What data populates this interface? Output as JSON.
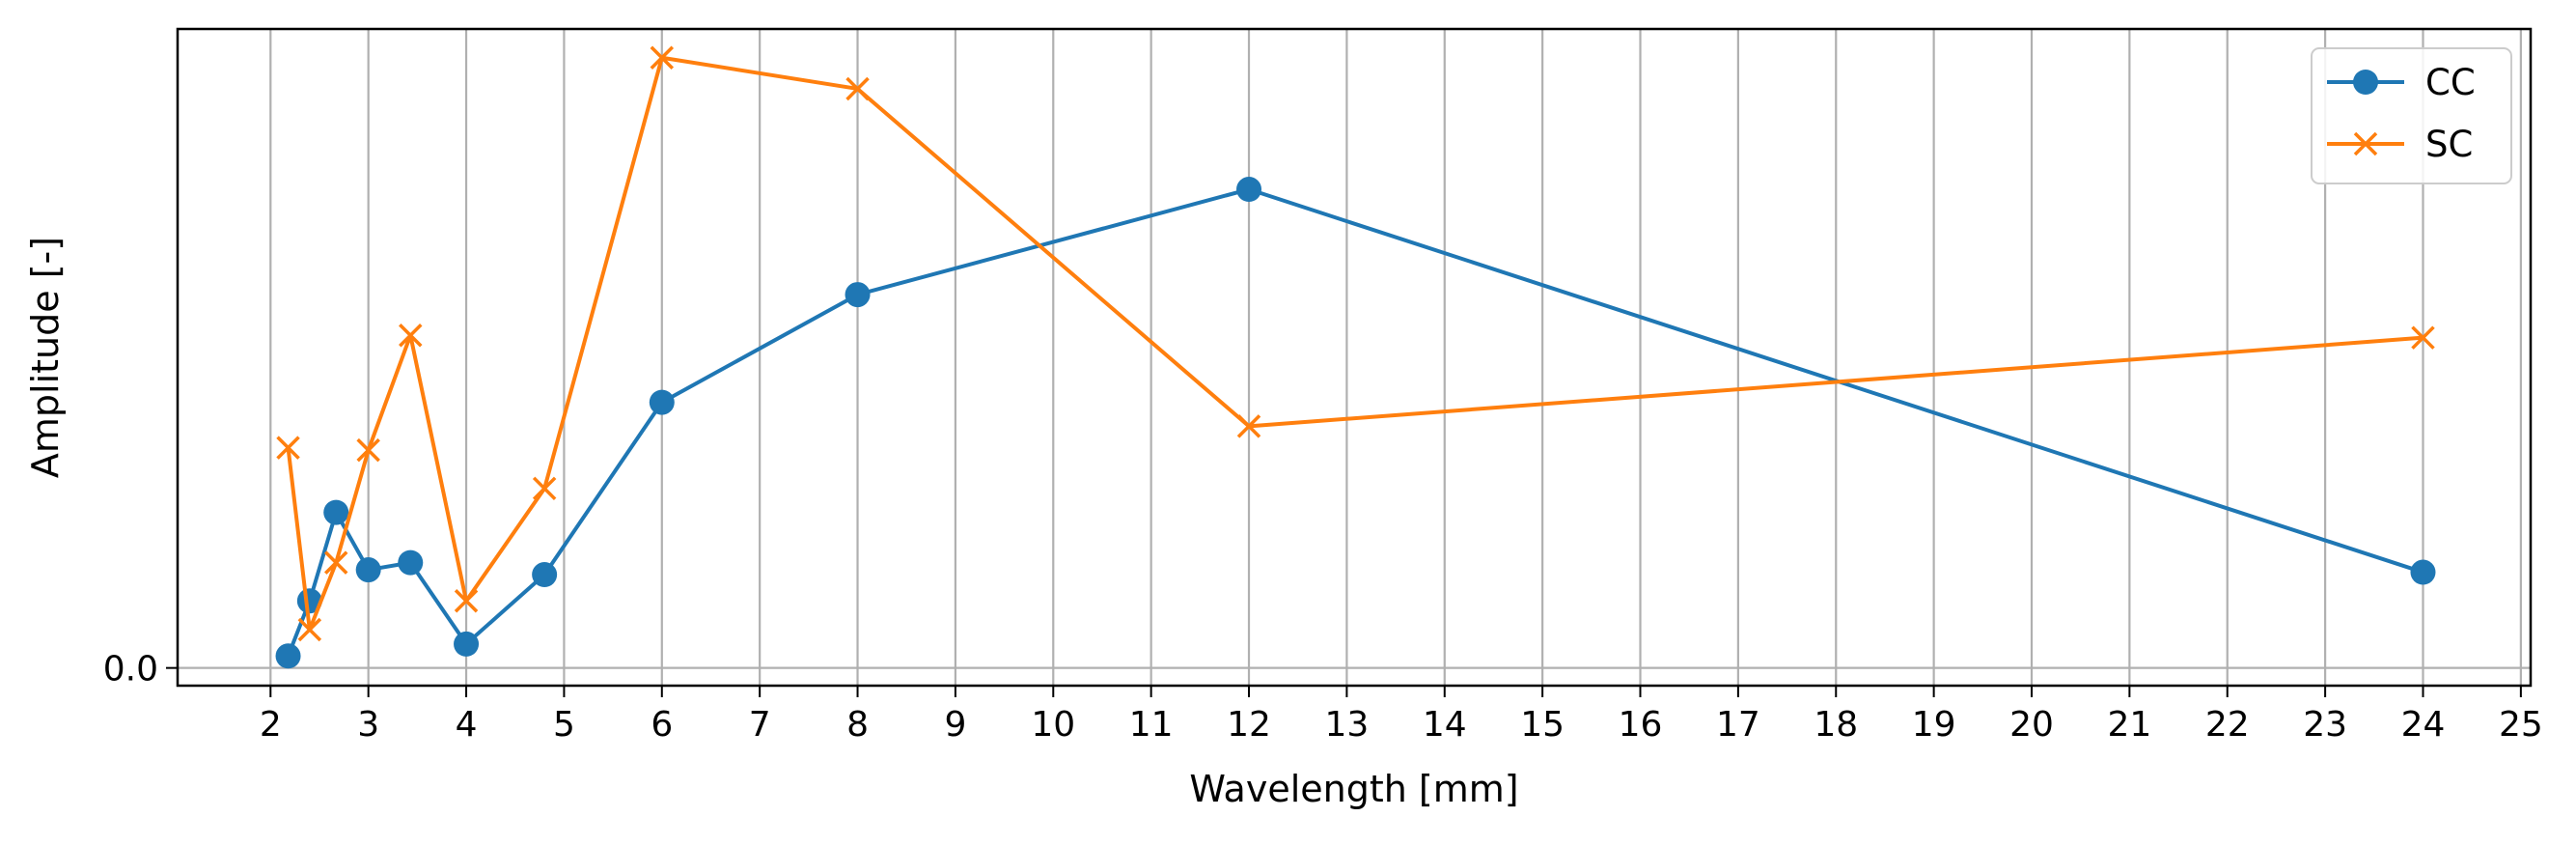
{
  "chart_data": {
    "type": "line",
    "title": "",
    "xlabel": "Wavelength [mm]",
    "ylabel": "Amplitude [-]",
    "xlim": [
      1.05,
      25.1
    ],
    "ylim": [
      -0.037,
      1.335
    ],
    "x_ticks": [
      "2",
      "3",
      "4",
      "5",
      "6",
      "7",
      "8",
      "9",
      "10",
      "11",
      "12",
      "13",
      "14",
      "15",
      "16",
      "17",
      "18",
      "19",
      "20",
      "21",
      "22",
      "23",
      "24",
      "25"
    ],
    "y_ticks": [
      "0.0"
    ],
    "grid": "vertical",
    "legend_position": "upper right",
    "series": [
      {
        "name": "CC",
        "color": "#1f77b4",
        "marker": "circle",
        "x": [
          2.18,
          2.4,
          2.67,
          3.0,
          3.43,
          4.0,
          4.8,
          6.0,
          8.0,
          12.0,
          24.0
        ],
        "y": [
          0.025,
          0.14,
          0.325,
          0.205,
          0.22,
          0.05,
          0.195,
          0.555,
          0.78,
          1.0,
          0.2
        ]
      },
      {
        "name": "SC",
        "color": "#ff7f0e",
        "marker": "x",
        "x": [
          2.18,
          2.4,
          2.67,
          3.0,
          3.43,
          4.0,
          4.8,
          6.0,
          8.0,
          12.0,
          24.0
        ],
        "y": [
          0.46,
          0.08,
          0.22,
          0.455,
          0.695,
          0.14,
          0.375,
          1.275,
          1.21,
          0.505,
          0.69
        ]
      }
    ]
  }
}
